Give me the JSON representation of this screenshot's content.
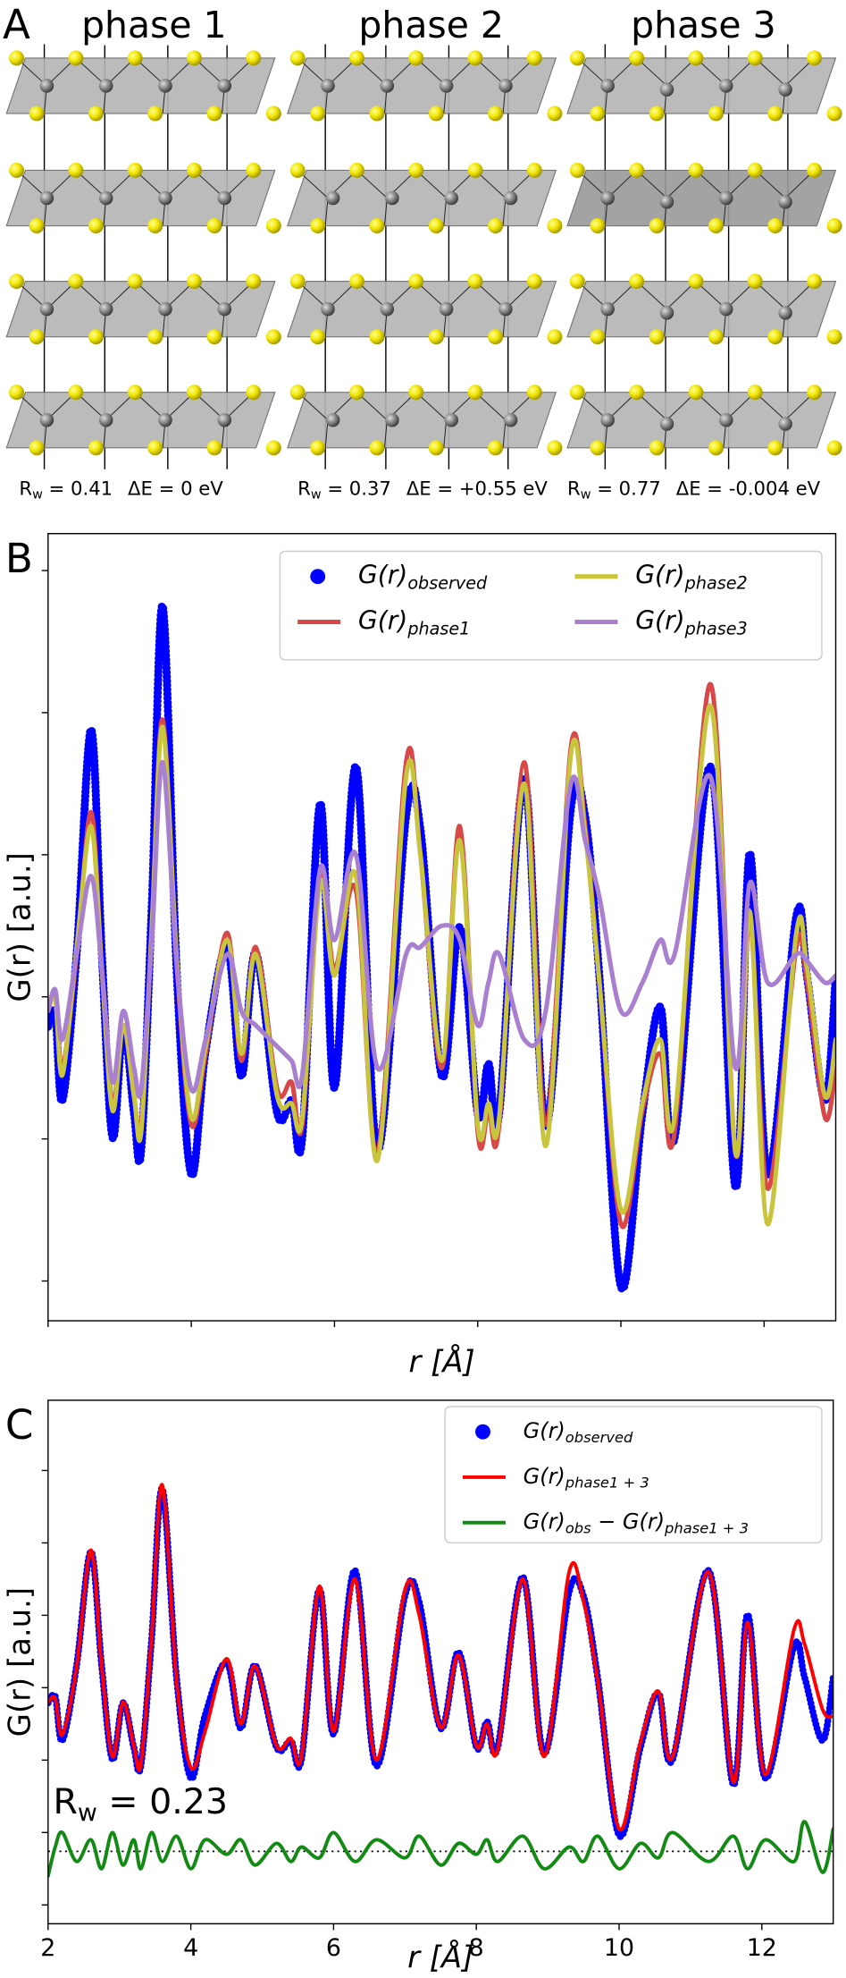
{
  "panel_a": {
    "label": "A",
    "rw_symbol": {
      "base": "R",
      "sub": "w"
    },
    "phases": [
      {
        "title": "phase 1",
        "rw": " = 0.41",
        "de": "ΔE = 0 eV"
      },
      {
        "title": "phase 2",
        "rw": " = 0.37",
        "de": "ΔE = +0.55 eV"
      },
      {
        "title": "phase 3",
        "rw": " = 0.77",
        "de": "ΔE = -0.004 eV"
      }
    ]
  },
  "chart_data": [
    {
      "type": "line",
      "panel_label": "B",
      "xlabel": "r [Å]",
      "ylabel": "G(r) [a.u.]",
      "xlim": [
        2,
        13
      ],
      "xticks": [
        2,
        4,
        6,
        8,
        10,
        12
      ],
      "ylim": [
        -2.28,
        3.26
      ],
      "yticks": [
        -2,
        -1,
        0,
        1,
        2,
        3
      ],
      "tick_labels": false,
      "legend": "upper right",
      "legend_columns": 2,
      "x": [
        2.0,
        2.1,
        2.2,
        2.4,
        2.6,
        2.75,
        2.9,
        3.05,
        3.2,
        3.3,
        3.45,
        3.6,
        3.8,
        4.0,
        4.2,
        4.5,
        4.7,
        4.9,
        5.2,
        5.4,
        5.55,
        5.8,
        6.0,
        6.3,
        6.6,
        7.0,
        7.2,
        7.5,
        7.75,
        8.0,
        8.15,
        8.3,
        8.65,
        8.95,
        9.3,
        9.5,
        9.7,
        10.0,
        10.3,
        10.55,
        10.75,
        11.25,
        11.6,
        11.8,
        12.05,
        12.45,
        12.6,
        12.85,
        13.0
      ],
      "series": [
        {
          "name": [
            "G(r)",
            "observed"
          ],
          "style": "dots",
          "color": "#0000ff",
          "values": [
            -0.21,
            -0.12,
            -0.73,
            0.31,
            1.88,
            0.31,
            -0.99,
            -0.21,
            -0.82,
            -1.08,
            0.66,
            2.75,
            0.14,
            -1.25,
            -0.38,
            0.35,
            -0.56,
            0.31,
            -0.82,
            -0.73,
            -0.99,
            1.36,
            -0.64,
            1.62,
            -1.08,
            1.27,
            1.18,
            -0.56,
            0.49,
            -0.82,
            -0.47,
            -0.82,
            1.53,
            -0.91,
            1.32,
            1.27,
            0.14,
            -2.04,
            -0.82,
            -0.07,
            -0.99,
            1.62,
            -1.34,
            1.01,
            -1.25,
            0.57,
            0.14,
            -0.73,
            0.14
          ]
        },
        {
          "name": [
            "G(r)",
            "phase1"
          ],
          "style": "line",
          "color": "#d94848",
          "values": [
            -0.1,
            0.0,
            -0.5,
            0.3,
            1.3,
            0.2,
            -0.75,
            -0.2,
            -0.7,
            -0.9,
            0.5,
            1.95,
            0.2,
            -0.9,
            -0.4,
            0.45,
            -0.45,
            0.35,
            -0.65,
            -0.6,
            -0.9,
            0.85,
            0.2,
            0.75,
            -1.1,
            1.65,
            1.0,
            -0.5,
            1.2,
            -0.95,
            -0.8,
            -0.9,
            1.65,
            -0.9,
            1.75,
            1.2,
            0.1,
            -1.6,
            -0.8,
            -0.4,
            -0.95,
            2.2,
            -1.1,
            0.55,
            -1.35,
            0.35,
            0.1,
            -0.85,
            -0.5
          ]
        },
        {
          "name": [
            "G(r)",
            "phase2"
          ],
          "style": "line",
          "color": "#c9c43e",
          "values": [
            -0.1,
            0.0,
            -0.55,
            0.35,
            1.2,
            0.2,
            -0.8,
            -0.2,
            -0.7,
            -0.95,
            0.5,
            1.9,
            0.25,
            -0.85,
            -0.35,
            0.4,
            -0.4,
            0.3,
            -0.7,
            -0.75,
            -0.85,
            0.8,
            0.15,
            0.85,
            -1.15,
            1.55,
            1.0,
            -0.45,
            1.1,
            -0.9,
            -0.75,
            -0.85,
            1.5,
            -1.05,
            1.7,
            1.15,
            0.1,
            -1.5,
            -0.75,
            -0.3,
            -0.85,
            2.05,
            -1.1,
            0.6,
            -1.6,
            0.45,
            0.2,
            -0.7,
            -0.3
          ]
        },
        {
          "name": [
            "G(r)",
            "phase3"
          ],
          "style": "line",
          "color": "#a97fd0",
          "values": [
            -0.1,
            0.05,
            -0.3,
            0.3,
            0.85,
            0.2,
            -0.6,
            -0.1,
            -0.5,
            -0.65,
            0.4,
            1.65,
            0.2,
            -0.65,
            -0.3,
            0.3,
            -0.1,
            -0.2,
            -0.35,
            -0.45,
            -0.55,
            0.9,
            0.4,
            1.0,
            -0.5,
            0.3,
            0.35,
            0.5,
            0.4,
            -0.2,
            0.1,
            0.3,
            -0.3,
            -0.1,
            1.5,
            1.1,
            0.7,
            -0.1,
            0.1,
            0.4,
            0.3,
            1.55,
            -0.5,
            0.8,
            0.1,
            0.3,
            0.25,
            0.1,
            0.15
          ]
        }
      ]
    },
    {
      "type": "line",
      "panel_label": "C",
      "xlabel": "r [Å]",
      "ylabel": "G(r) [a.u.]",
      "xlim": [
        2,
        13
      ],
      "xticks": [
        2,
        4,
        6,
        8,
        10,
        12
      ],
      "ylim": [
        -3.26,
        3.97
      ],
      "yticks": [
        -3,
        -2,
        -1,
        0,
        1,
        2,
        3
      ],
      "tick_labels": true,
      "legend": "upper right",
      "legend_columns": 1,
      "hline": -2.26,
      "annotation": {
        "base": "R",
        "sub": "w",
        "text": " = 0.23"
      },
      "x": [
        2.0,
        2.1,
        2.2,
        2.4,
        2.6,
        2.75,
        2.9,
        3.05,
        3.2,
        3.3,
        3.45,
        3.6,
        3.8,
        4.0,
        4.2,
        4.5,
        4.7,
        4.9,
        5.2,
        5.4,
        5.55,
        5.8,
        6.0,
        6.3,
        6.6,
        7.0,
        7.2,
        7.5,
        7.75,
        8.0,
        8.15,
        8.3,
        8.65,
        8.95,
        9.3,
        9.5,
        9.7,
        10.0,
        10.3,
        10.55,
        10.75,
        11.25,
        11.6,
        11.8,
        12.05,
        12.45,
        12.6,
        12.85,
        13.0
      ],
      "series": [
        {
          "name": [
            "G(r)",
            "observed"
          ],
          "style": "dots",
          "color": "#0000ff",
          "values": [
            -0.21,
            -0.12,
            -0.73,
            0.31,
            1.88,
            0.31,
            -0.99,
            -0.21,
            -0.82,
            -1.08,
            0.66,
            2.75,
            0.14,
            -1.25,
            -0.38,
            0.35,
            -0.56,
            0.31,
            -0.82,
            -0.73,
            -0.99,
            1.36,
            -0.64,
            1.62,
            -1.08,
            1.27,
            1.18,
            -0.56,
            0.49,
            -0.82,
            -0.47,
            -0.82,
            1.53,
            -0.91,
            1.32,
            1.27,
            0.14,
            -2.04,
            -0.82,
            -0.07,
            -0.99,
            1.62,
            -1.34,
            1.01,
            -1.25,
            0.57,
            0.14,
            -0.73,
            0.14
          ]
        },
        {
          "name": [
            "G(r)",
            "phase1 + 3"
          ],
          "style": "line",
          "color": "#ff0000",
          "values": [
            -0.2,
            -0.15,
            -0.65,
            0.3,
            1.9,
            0.3,
            -0.95,
            -0.2,
            -0.8,
            -1.05,
            0.7,
            2.8,
            0.1,
            -1.1,
            -0.6,
            0.4,
            -0.5,
            0.3,
            -0.8,
            -0.7,
            -0.95,
            1.4,
            -0.6,
            1.5,
            -1.0,
            1.35,
            1.0,
            -0.55,
            0.45,
            -0.8,
            -0.5,
            -0.85,
            1.5,
            -0.95,
            1.6,
            1.2,
            0.1,
            -1.95,
            -0.75,
            -0.05,
            -0.95,
            1.6,
            -1.3,
            0.9,
            -1.2,
            0.8,
            0.6,
            -0.3,
            -0.4
          ]
        },
        {
          "name": [
            "G(r)",
            "obs",
            " − G(r)",
            "phase1 + 3"
          ],
          "style": "line",
          "color": "#138a13",
          "values": [
            -2.6,
            -2.2,
            -2.0,
            -2.4,
            -2.1,
            -2.5,
            -2.0,
            -2.45,
            -2.1,
            -2.5,
            -2.0,
            -2.4,
            -2.05,
            -2.5,
            -2.1,
            -2.3,
            -2.1,
            -2.45,
            -2.15,
            -2.4,
            -2.2,
            -2.35,
            -2.0,
            -2.4,
            -2.1,
            -2.35,
            -2.05,
            -2.45,
            -2.15,
            -2.3,
            -2.1,
            -2.4,
            -2.05,
            -2.5,
            -2.2,
            -2.4,
            -2.05,
            -2.5,
            -2.15,
            -2.35,
            -2.0,
            -2.4,
            -2.05,
            -2.5,
            -2.1,
            -2.4,
            -1.85,
            -2.55,
            -1.95
          ]
        }
      ]
    }
  ]
}
